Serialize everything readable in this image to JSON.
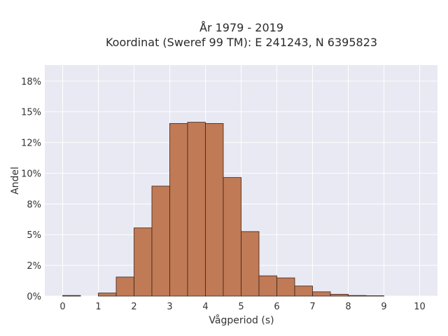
{
  "chart_data": {
    "type": "bar",
    "title_line1": "År 1979 - 2019",
    "title_line2": "Koordinat (Sweref 99 TM): E 241243, N 6395823",
    "xlabel": "Vågperiod (s)",
    "ylabel": "Andel",
    "xlim": [
      -0.5,
      10.5
    ],
    "ylim": [
      0,
      0.188
    ],
    "x_ticks": [
      0,
      1,
      2,
      3,
      4,
      5,
      6,
      7,
      8,
      9,
      10
    ],
    "x_tick_labels": [
      "0",
      "1",
      "2",
      "3",
      "4",
      "5",
      "6",
      "7",
      "8",
      "9",
      "10"
    ],
    "y_ticks": [
      0,
      0.025,
      0.05,
      0.075,
      0.1,
      0.125,
      0.15,
      0.175
    ],
    "y_tick_labels": [
      "0%",
      "2%",
      "5%",
      "8%",
      "10%",
      "12%",
      "15%",
      "18%"
    ],
    "bin_width": 0.5,
    "bin_starts": [
      0,
      0.5,
      1,
      1.5,
      2,
      2.5,
      3,
      3.5,
      4,
      4.5,
      5,
      5.5,
      6,
      6.5,
      7,
      7.5,
      8,
      8.5,
      9,
      9.5
    ],
    "values": [
      0.0005,
      0,
      0.0025,
      0.0155,
      0.0555,
      0.0895,
      0.1405,
      0.1415,
      0.1405,
      0.0965,
      0.0525,
      0.0165,
      0.0148,
      0.0082,
      0.0035,
      0.0015,
      0.0005,
      0.0003,
      0,
      0
    ],
    "grid": true,
    "colors": {
      "bar_fill": "#c07a56",
      "bar_edge": "#3a2418",
      "plot_background": "#e8e9f2",
      "grid": "#ffffff"
    }
  }
}
